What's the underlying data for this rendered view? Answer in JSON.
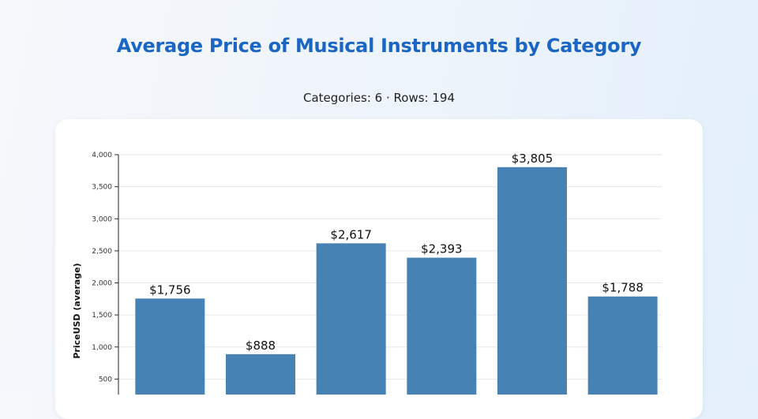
{
  "header": {
    "title": "Average Price of Musical Instruments by Category",
    "subtitle": "Categories: 6 · Rows: 194"
  },
  "chart_data": {
    "type": "bar",
    "title": "Average Price of Musical Instruments by Category",
    "ylabel": "PriceUSD (average)",
    "xlabel": "",
    "ylim": [
      0,
      4000
    ],
    "yticks": [
      500,
      1000,
      1500,
      2000,
      2500,
      3000,
      3500,
      4000
    ],
    "ytick_labels": [
      "500",
      "1,000",
      "1,500",
      "2,000",
      "2,500",
      "3,000",
      "3,500",
      "4,000"
    ],
    "values": [
      1756,
      888,
      2617,
      2393,
      3805,
      1788
    ],
    "data_labels": [
      "$1,756",
      "$888",
      "$2,617",
      "$2,393",
      "$3,805",
      "$1,788"
    ],
    "grid": true,
    "bar_color": "#4682b4"
  }
}
